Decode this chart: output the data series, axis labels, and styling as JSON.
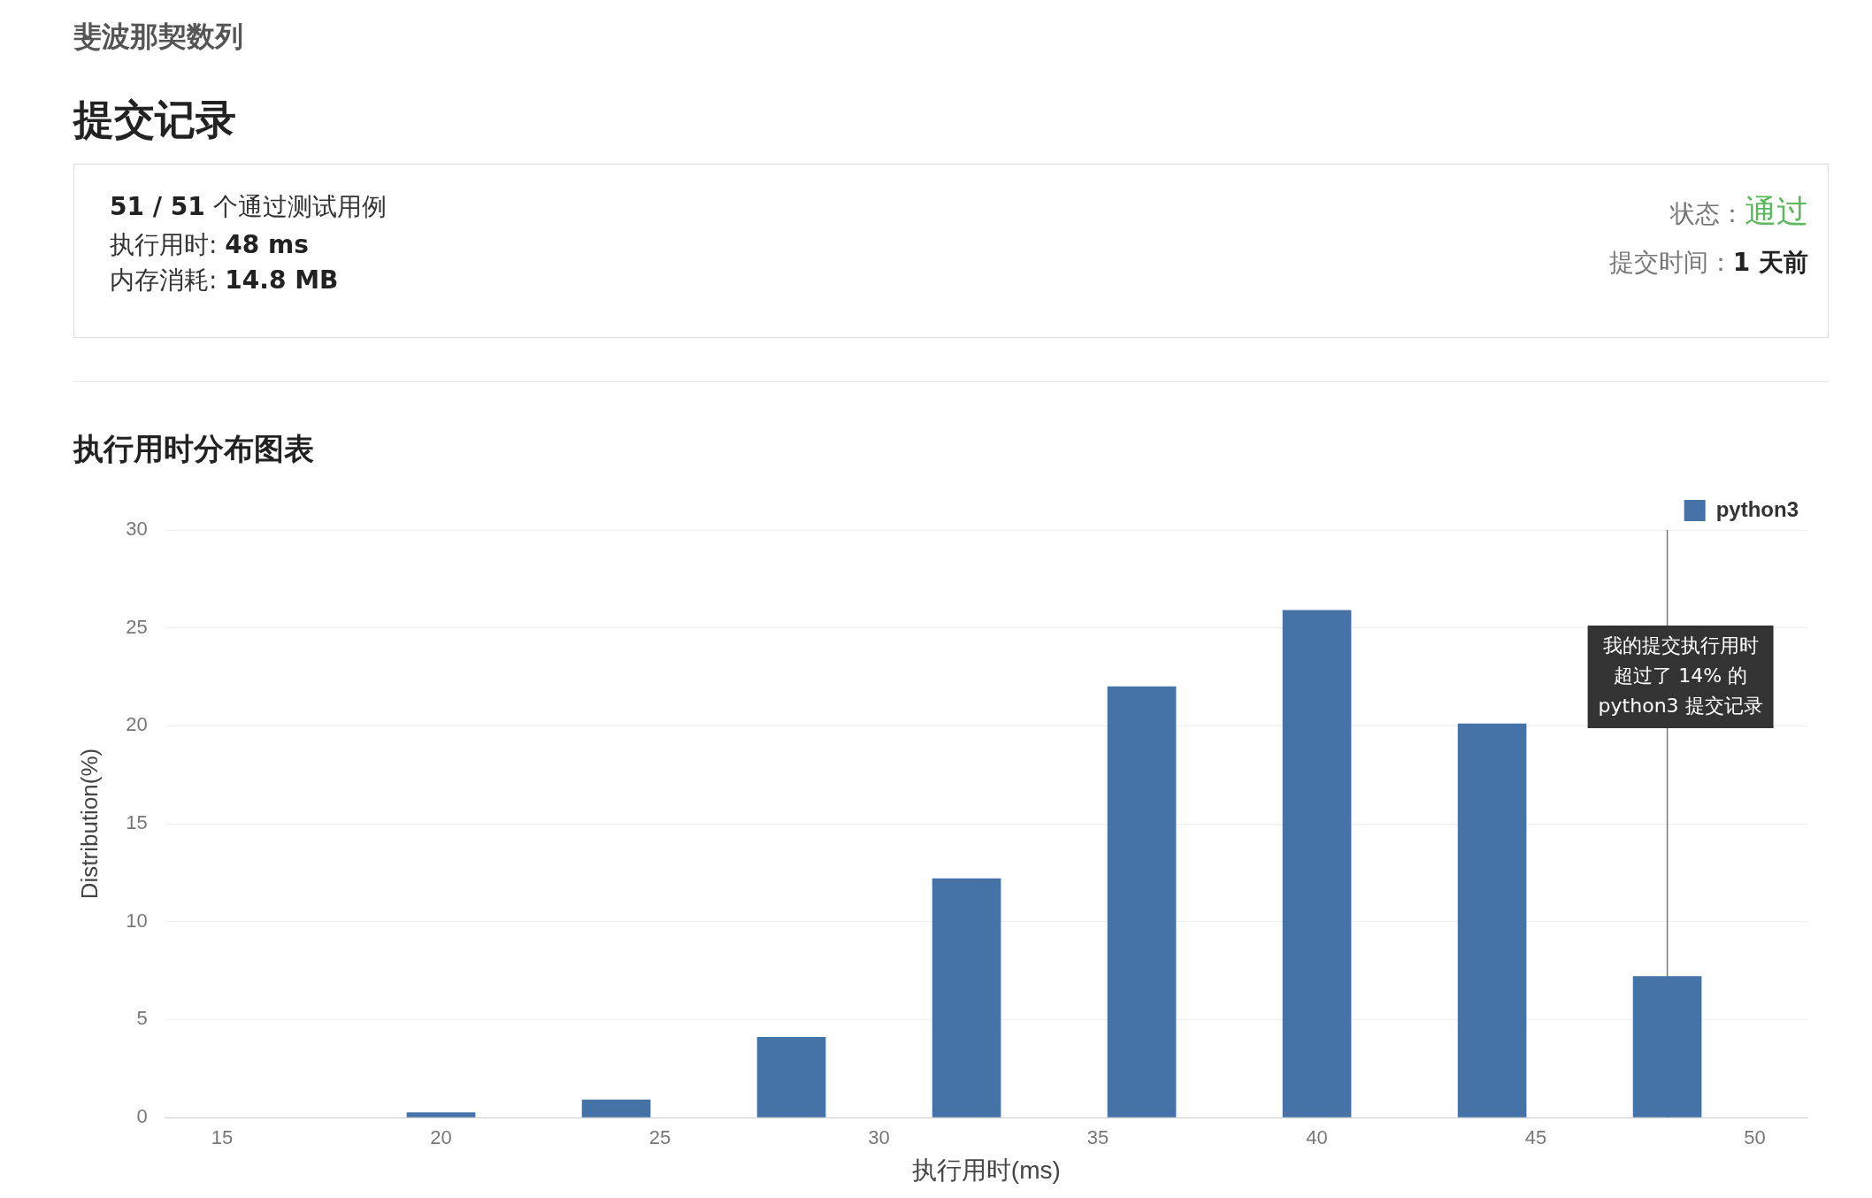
{
  "chart_data": {
    "type": "bar",
    "title": "执行用时分布图表",
    "xlabel": "执行用时(ms)",
    "ylabel": "Distribution(%)",
    "x": [
      20,
      24,
      28,
      32,
      36,
      40,
      44,
      48
    ],
    "series": [
      {
        "name": "python3",
        "color": "#4572a7",
        "values": [
          0.24,
          0.9,
          4.1,
          12.2,
          22.0,
          25.9,
          20.1,
          7.2
        ]
      }
    ],
    "xlim": [
      13.7,
      51.2
    ],
    "xticks": [
      15,
      20,
      25,
      30,
      35,
      40,
      45,
      50
    ],
    "ylim": [
      0,
      30
    ],
    "yticks": [
      0,
      5,
      10,
      15,
      20,
      25,
      30
    ],
    "grid": "y",
    "legend": "top right",
    "ref_lines": [
      {
        "axis": "x",
        "value": 48,
        "color": "#777777"
      }
    ],
    "annotations": [
      "斐波那契数列",
      "提交记录",
      "51 / 51 个通过测试用例",
      "执行用时: 48 ms",
      "内存消耗: 14.8 MB",
      "状态：通过",
      "提交时间：1 天前",
      {
        "text": "我的提交执行用时超过了 14% 的 python3 提交记录",
        "x": 48,
        "y": 22.5
      }
    ]
  }
}
